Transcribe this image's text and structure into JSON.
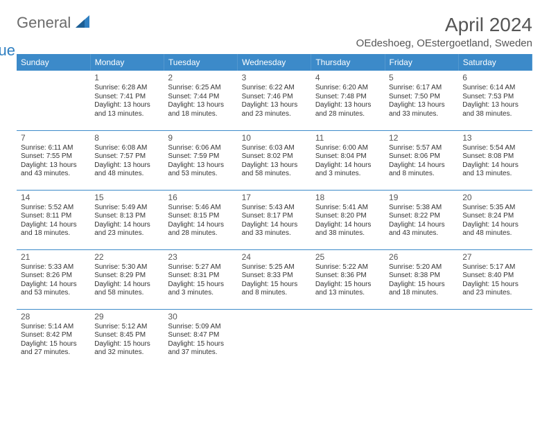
{
  "brand": {
    "general": "General",
    "blue": "Blue"
  },
  "header": {
    "month_title": "April 2024",
    "location": "OEdeshoeg, OEstergoetland, Sweden"
  },
  "colors": {
    "header_bg": "#3c8ac9",
    "header_text": "#ffffff",
    "brand_gray": "#6b6b6b",
    "brand_blue": "#2f7fc1",
    "title_color": "#555555",
    "text_color": "#333333",
    "row_divider": "#3c8ac9",
    "background": "#ffffff"
  },
  "typography": {
    "font_family": "Arial, Helvetica, sans-serif",
    "month_title_size": 28,
    "location_size": 15,
    "weekday_size": 12,
    "daynum_size": 12,
    "cell_size": 10
  },
  "weekdays": [
    "Sunday",
    "Monday",
    "Tuesday",
    "Wednesday",
    "Thursday",
    "Friday",
    "Saturday"
  ],
  "weeks": [
    [
      null,
      {
        "d": "1",
        "sr": "Sunrise: 6:28 AM",
        "ss": "Sunset: 7:41 PM",
        "dl1": "Daylight: 13 hours",
        "dl2": "and 13 minutes."
      },
      {
        "d": "2",
        "sr": "Sunrise: 6:25 AM",
        "ss": "Sunset: 7:44 PM",
        "dl1": "Daylight: 13 hours",
        "dl2": "and 18 minutes."
      },
      {
        "d": "3",
        "sr": "Sunrise: 6:22 AM",
        "ss": "Sunset: 7:46 PM",
        "dl1": "Daylight: 13 hours",
        "dl2": "and 23 minutes."
      },
      {
        "d": "4",
        "sr": "Sunrise: 6:20 AM",
        "ss": "Sunset: 7:48 PM",
        "dl1": "Daylight: 13 hours",
        "dl2": "and 28 minutes."
      },
      {
        "d": "5",
        "sr": "Sunrise: 6:17 AM",
        "ss": "Sunset: 7:50 PM",
        "dl1": "Daylight: 13 hours",
        "dl2": "and 33 minutes."
      },
      {
        "d": "6",
        "sr": "Sunrise: 6:14 AM",
        "ss": "Sunset: 7:53 PM",
        "dl1": "Daylight: 13 hours",
        "dl2": "and 38 minutes."
      }
    ],
    [
      {
        "d": "7",
        "sr": "Sunrise: 6:11 AM",
        "ss": "Sunset: 7:55 PM",
        "dl1": "Daylight: 13 hours",
        "dl2": "and 43 minutes."
      },
      {
        "d": "8",
        "sr": "Sunrise: 6:08 AM",
        "ss": "Sunset: 7:57 PM",
        "dl1": "Daylight: 13 hours",
        "dl2": "and 48 minutes."
      },
      {
        "d": "9",
        "sr": "Sunrise: 6:06 AM",
        "ss": "Sunset: 7:59 PM",
        "dl1": "Daylight: 13 hours",
        "dl2": "and 53 minutes."
      },
      {
        "d": "10",
        "sr": "Sunrise: 6:03 AM",
        "ss": "Sunset: 8:02 PM",
        "dl1": "Daylight: 13 hours",
        "dl2": "and 58 minutes."
      },
      {
        "d": "11",
        "sr": "Sunrise: 6:00 AM",
        "ss": "Sunset: 8:04 PM",
        "dl1": "Daylight: 14 hours",
        "dl2": "and 3 minutes."
      },
      {
        "d": "12",
        "sr": "Sunrise: 5:57 AM",
        "ss": "Sunset: 8:06 PM",
        "dl1": "Daylight: 14 hours",
        "dl2": "and 8 minutes."
      },
      {
        "d": "13",
        "sr": "Sunrise: 5:54 AM",
        "ss": "Sunset: 8:08 PM",
        "dl1": "Daylight: 14 hours",
        "dl2": "and 13 minutes."
      }
    ],
    [
      {
        "d": "14",
        "sr": "Sunrise: 5:52 AM",
        "ss": "Sunset: 8:11 PM",
        "dl1": "Daylight: 14 hours",
        "dl2": "and 18 minutes."
      },
      {
        "d": "15",
        "sr": "Sunrise: 5:49 AM",
        "ss": "Sunset: 8:13 PM",
        "dl1": "Daylight: 14 hours",
        "dl2": "and 23 minutes."
      },
      {
        "d": "16",
        "sr": "Sunrise: 5:46 AM",
        "ss": "Sunset: 8:15 PM",
        "dl1": "Daylight: 14 hours",
        "dl2": "and 28 minutes."
      },
      {
        "d": "17",
        "sr": "Sunrise: 5:43 AM",
        "ss": "Sunset: 8:17 PM",
        "dl1": "Daylight: 14 hours",
        "dl2": "and 33 minutes."
      },
      {
        "d": "18",
        "sr": "Sunrise: 5:41 AM",
        "ss": "Sunset: 8:20 PM",
        "dl1": "Daylight: 14 hours",
        "dl2": "and 38 minutes."
      },
      {
        "d": "19",
        "sr": "Sunrise: 5:38 AM",
        "ss": "Sunset: 8:22 PM",
        "dl1": "Daylight: 14 hours",
        "dl2": "and 43 minutes."
      },
      {
        "d": "20",
        "sr": "Sunrise: 5:35 AM",
        "ss": "Sunset: 8:24 PM",
        "dl1": "Daylight: 14 hours",
        "dl2": "and 48 minutes."
      }
    ],
    [
      {
        "d": "21",
        "sr": "Sunrise: 5:33 AM",
        "ss": "Sunset: 8:26 PM",
        "dl1": "Daylight: 14 hours",
        "dl2": "and 53 minutes."
      },
      {
        "d": "22",
        "sr": "Sunrise: 5:30 AM",
        "ss": "Sunset: 8:29 PM",
        "dl1": "Daylight: 14 hours",
        "dl2": "and 58 minutes."
      },
      {
        "d": "23",
        "sr": "Sunrise: 5:27 AM",
        "ss": "Sunset: 8:31 PM",
        "dl1": "Daylight: 15 hours",
        "dl2": "and 3 minutes."
      },
      {
        "d": "24",
        "sr": "Sunrise: 5:25 AM",
        "ss": "Sunset: 8:33 PM",
        "dl1": "Daylight: 15 hours",
        "dl2": "and 8 minutes."
      },
      {
        "d": "25",
        "sr": "Sunrise: 5:22 AM",
        "ss": "Sunset: 8:36 PM",
        "dl1": "Daylight: 15 hours",
        "dl2": "and 13 minutes."
      },
      {
        "d": "26",
        "sr": "Sunrise: 5:20 AM",
        "ss": "Sunset: 8:38 PM",
        "dl1": "Daylight: 15 hours",
        "dl2": "and 18 minutes."
      },
      {
        "d": "27",
        "sr": "Sunrise: 5:17 AM",
        "ss": "Sunset: 8:40 PM",
        "dl1": "Daylight: 15 hours",
        "dl2": "and 23 minutes."
      }
    ],
    [
      {
        "d": "28",
        "sr": "Sunrise: 5:14 AM",
        "ss": "Sunset: 8:42 PM",
        "dl1": "Daylight: 15 hours",
        "dl2": "and 27 minutes."
      },
      {
        "d": "29",
        "sr": "Sunrise: 5:12 AM",
        "ss": "Sunset: 8:45 PM",
        "dl1": "Daylight: 15 hours",
        "dl2": "and 32 minutes."
      },
      {
        "d": "30",
        "sr": "Sunrise: 5:09 AM",
        "ss": "Sunset: 8:47 PM",
        "dl1": "Daylight: 15 hours",
        "dl2": "and 37 minutes."
      },
      null,
      null,
      null,
      null
    ]
  ]
}
